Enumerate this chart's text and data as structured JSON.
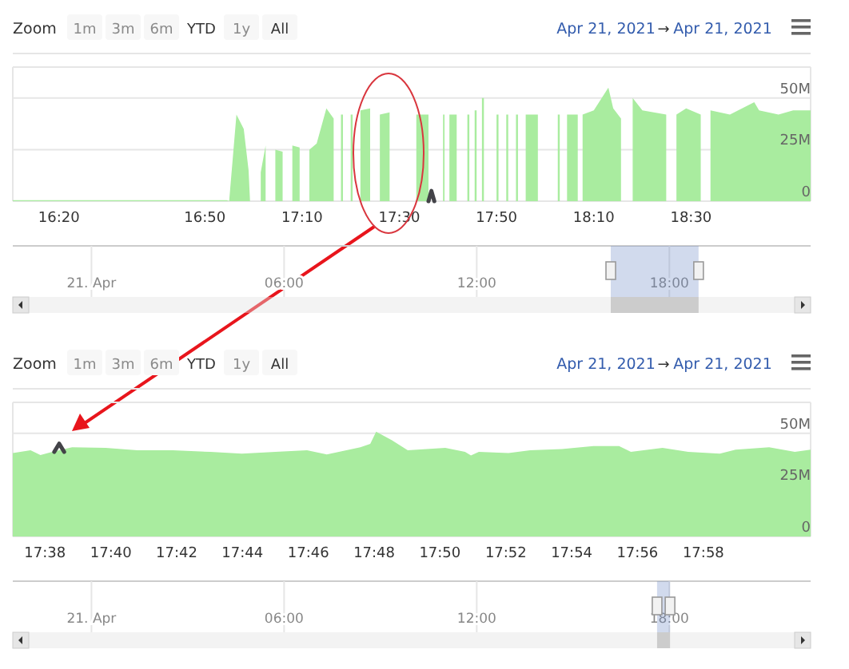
{
  "chart_data": [
    {
      "type": "area",
      "xlim": [
        16.175,
        18.91
      ],
      "xticks": [
        {
          "value": 16.3333,
          "label": "16:20"
        },
        {
          "value": 16.8333,
          "label": "16:50"
        },
        {
          "value": 17.1667,
          "label": "17:10"
        },
        {
          "value": 17.5,
          "label": "17:30"
        },
        {
          "value": 17.8333,
          "label": "17:50"
        },
        {
          "value": 18.1667,
          "label": "18:10"
        },
        {
          "value": 18.5,
          "label": "18:30"
        }
      ],
      "ylim": [
        0,
        65
      ],
      "yticks": [
        {
          "value": 0,
          "label": "0"
        },
        {
          "value": 25,
          "label": "25M"
        },
        {
          "value": 50,
          "label": "50M"
        }
      ],
      "grid": "y",
      "x2lim": [
        -2.45,
        22.4
      ],
      "x2ticks": [
        {
          "value": 0,
          "label": "21. Apr"
        },
        {
          "value": 6,
          "label": "06:00"
        },
        {
          "value": 12,
          "label": "12:00"
        },
        {
          "value": 18,
          "label": "18:00"
        }
      ],
      "annotations": [
        "Zoom",
        "1m",
        "3m",
        "6m",
        "YTD",
        "1y",
        "All",
        "Apr 21, 2021",
        "→",
        "Apr 21, 2021"
      ],
      "series": [
        {
          "color": "#a9ec9f",
          "x": [
            16.175,
            16.6667,
            16.9083,
            16.9167,
            16.9417,
            16.9667,
            16.9833,
            16.9883,
            17.0083,
            17.025,
            17.0417,
            17.05,
            17.075,
            17.1,
            17.1167,
            17.1333,
            17.1583,
            17.175,
            17.1917,
            17.2167,
            17.25,
            17.275,
            17.2833,
            17.3,
            17.3067,
            17.3167,
            17.3333,
            17.34,
            17.35,
            17.3667,
            17.4,
            17.4167,
            17.4333,
            17.4667,
            17.5,
            17.5583,
            17.6,
            17.625,
            17.65,
            17.655,
            17.6633,
            17.6717,
            17.6967,
            17.7167,
            17.7333,
            17.74,
            17.75,
            17.7583,
            17.765,
            17.775,
            17.7833,
            17.79,
            17.8083,
            17.8333,
            17.84,
            17.85,
            17.8667,
            17.8733,
            17.8833,
            17.9,
            17.9067,
            17.9167,
            17.9333,
            17.975,
            18.0,
            18.0433,
            18.05,
            18.0617,
            18.075,
            18.1117,
            18.12,
            18.1283,
            18.1667,
            18.2167,
            18.2333,
            18.26,
            18.28,
            18.3,
            18.3333,
            18.415,
            18.4333,
            18.45,
            18.4833,
            18.5333,
            18.55,
            18.5667,
            18.6333,
            18.7167,
            18.7333,
            18.8,
            18.85,
            18.91
          ],
          "values": [
            0.5,
            0.5,
            0.5,
            0,
            42,
            35,
            15,
            0,
            null,
            14,
            27,
            null,
            25,
            24,
            null,
            27,
            26,
            null,
            25,
            28,
            45,
            40,
            null,
            42,
            42,
            null,
            42,
            42,
            null,
            44,
            45,
            null,
            42,
            43,
            null,
            42,
            42,
            null,
            42,
            42,
            null,
            42,
            42,
            null,
            42,
            42,
            null,
            44,
            44,
            null,
            50,
            50,
            null,
            42,
            42,
            null,
            42,
            42,
            null,
            42,
            42,
            null,
            42,
            42,
            null,
            42,
            42,
            null,
            42,
            42,
            null,
            42,
            44,
            55,
            45,
            40,
            null,
            50,
            44,
            42,
            null,
            42,
            45,
            42,
            null,
            44,
            42,
            48,
            44,
            42,
            44,
            44
          ]
        },
        {
          "type": "line",
          "color": "#434348",
          "x": [
            17.6,
            17.61,
            17.62
          ],
          "values": [
            0,
            5,
            0
          ]
        }
      ]
    },
    {
      "type": "area",
      "xlim": [
        17.617,
        18.021
      ],
      "xticks": [
        {
          "value": 17.6333,
          "label": "17:38"
        },
        {
          "value": 17.6667,
          "label": "17:40"
        },
        {
          "value": 17.7,
          "label": "17:42"
        },
        {
          "value": 17.7333,
          "label": "17:44"
        },
        {
          "value": 17.7667,
          "label": "17:46"
        },
        {
          "value": 17.8,
          "label": "17:48"
        },
        {
          "value": 17.8333,
          "label": "17:50"
        },
        {
          "value": 17.8667,
          "label": "17:52"
        },
        {
          "value": 17.9,
          "label": "17:54"
        },
        {
          "value": 17.9333,
          "label": "17:56"
        },
        {
          "value": 17.9667,
          "label": "17:58"
        }
      ],
      "ylim": [
        0,
        65
      ],
      "yticks": [
        {
          "value": 0,
          "label": "0"
        },
        {
          "value": 25,
          "label": "25M"
        },
        {
          "value": 50,
          "label": "50M"
        }
      ],
      "grid": "y",
      "x2lim": [
        -2.45,
        22.4
      ],
      "x2ticks": [
        {
          "value": 0,
          "label": "21. Apr"
        },
        {
          "value": 6,
          "label": "06:00"
        },
        {
          "value": 12,
          "label": "12:00"
        },
        {
          "value": 18,
          "label": "18:00"
        }
      ],
      "annotations": [
        "Zoom",
        "1m",
        "3m",
        "6m",
        "YTD",
        "1y",
        "All",
        "Apr 21, 2021",
        "→",
        "Apr 21, 2021"
      ],
      "series": [
        {
          "color": "#a9ec9f",
          "x": [
            17.617,
            17.626,
            17.631,
            17.637,
            17.647,
            17.664,
            17.68,
            17.698,
            17.717,
            17.733,
            17.75,
            17.766,
            17.776,
            17.793,
            17.798,
            17.801,
            17.809,
            17.817,
            17.836,
            17.846,
            17.849,
            17.853,
            17.868,
            17.879,
            17.895,
            17.911,
            17.924,
            17.93,
            17.946,
            17.959,
            17.975,
            17.983,
            18.0,
            18.013,
            18.021
          ],
          "values": [
            40.4,
            41.8,
            39.5,
            41.0,
            43.2,
            42.9,
            41.8,
            41.8,
            41.0,
            40.1,
            41.0,
            41.8,
            39.8,
            43.2,
            44.9,
            50.8,
            46.6,
            41.8,
            42.9,
            41.0,
            39.3,
            41.0,
            40.4,
            41.8,
            42.4,
            43.8,
            43.8,
            41.0,
            42.9,
            41.0,
            40.1,
            42.1,
            43.2,
            41.0,
            42.1
          ]
        },
        {
          "type": "line",
          "color": "#434348",
          "x": [
            17.638,
            17.6405,
            17.643
          ],
          "values": [
            41,
            45,
            41
          ]
        }
      ]
    }
  ]
}
